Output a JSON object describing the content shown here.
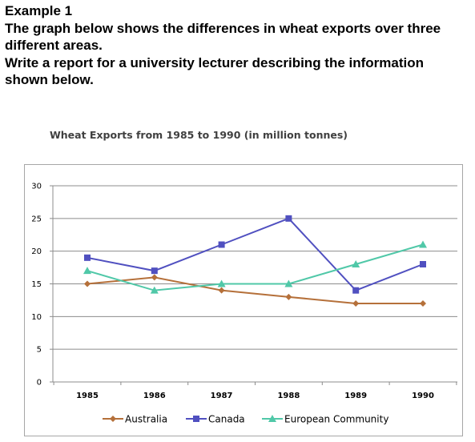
{
  "prompt": {
    "heading": "Example 1",
    "line1": "The graph below shows the differences in wheat exports over three",
    "line2": "different areas.",
    "line3": "Write a report for a university lecturer describing the information",
    "line4": "shown below."
  },
  "chart_data": {
    "type": "line",
    "title": "Wheat Exports from 1985 to 1990 (in million tonnes)",
    "xlabel": "",
    "ylabel": "",
    "categories": [
      "1985",
      "1986",
      "1987",
      "1988",
      "1989",
      "1990"
    ],
    "ylim": [
      0,
      30
    ],
    "yticks": [
      0,
      5,
      10,
      15,
      20,
      25,
      30
    ],
    "grid": true,
    "legend_position": "bottom",
    "series": [
      {
        "name": "Australia",
        "values": [
          15,
          16,
          14,
          13,
          12,
          12
        ],
        "color": "#b5703a",
        "marker": "diamond"
      },
      {
        "name": "Canada",
        "values": [
          19,
          17,
          21,
          25,
          14,
          18
        ],
        "color": "#5050c0",
        "marker": "square"
      },
      {
        "name": "European Community",
        "values": [
          17,
          14,
          15,
          15,
          18,
          21
        ],
        "color": "#50c8a8",
        "marker": "triangle"
      }
    ]
  }
}
